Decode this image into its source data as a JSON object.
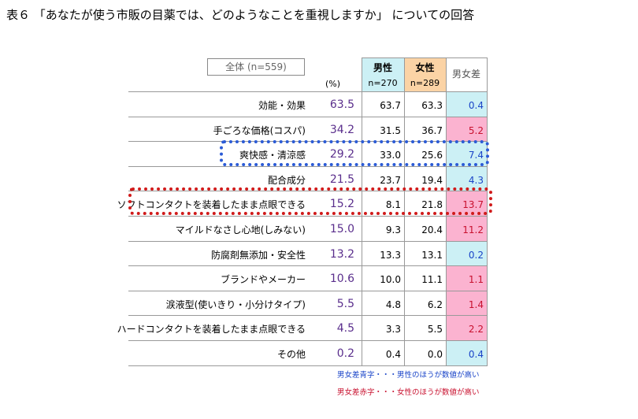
{
  "title": "表６ 「あなたが使う市販の目薬では、どのようなことを重視しますか」 についての回答",
  "total_badge": "全体 (n=559)",
  "pct_label": "(%)",
  "headers": {
    "male": "男性",
    "male_n": "n=270",
    "female": "女性",
    "female_n": "n=289",
    "diff": "男女差"
  },
  "notes": {
    "blue": "男女差青字・・・男性のほうが数値が高い",
    "red": "男女差赤字・・・女性のほうが数値が高い"
  },
  "colors": {
    "blue": "#1a44c8",
    "red": "#c8102e",
    "male_bg": "#ccf0f5",
    "female_bg": "#fbd3a5",
    "diff_red_bg": "#fbb3d0"
  },
  "chart_data": {
    "type": "table",
    "rows": [
      {
        "label": "効能・効果",
        "total": "63.5",
        "male": "63.7",
        "female": "63.3",
        "diff": "0.4",
        "higher": "male"
      },
      {
        "label": "手ごろな価格(コスパ)",
        "total": "34.2",
        "male": "31.5",
        "female": "36.7",
        "diff": "5.2",
        "higher": "female"
      },
      {
        "label": "爽快感・清涼感",
        "total": "29.2",
        "male": "33.0",
        "female": "25.6",
        "diff": "7.4",
        "higher": "male"
      },
      {
        "label": "配合成分",
        "total": "21.5",
        "male": "23.7",
        "female": "19.4",
        "diff": "4.3",
        "higher": "male"
      },
      {
        "label": "ソフトコンタクトを装着したまま点眼できる",
        "total": "15.2",
        "male": "8.1",
        "female": "21.8",
        "diff": "13.7",
        "higher": "female"
      },
      {
        "label": "マイルドなさし心地(しみない)",
        "total": "15.0",
        "male": "9.3",
        "female": "20.4",
        "diff": "11.2",
        "higher": "female"
      },
      {
        "label": "防腐剤無添加・安全性",
        "total": "13.2",
        "male": "13.3",
        "female": "13.1",
        "diff": "0.2",
        "higher": "male"
      },
      {
        "label": "ブランドやメーカー",
        "total": "10.6",
        "male": "10.0",
        "female": "11.1",
        "diff": "1.1",
        "higher": "female"
      },
      {
        "label": "涙液型(使いきり・小分けタイプ)",
        "total": "5.5",
        "male": "4.8",
        "female": "6.2",
        "diff": "1.4",
        "higher": "female"
      },
      {
        "label": "ハードコンタクトを装着したまま点眼できる",
        "total": "4.5",
        "male": "3.3",
        "female": "5.5",
        "diff": "2.2",
        "higher": "female"
      },
      {
        "label": "その他",
        "total": "0.2",
        "male": "0.4",
        "female": "0.0",
        "diff": "0.4",
        "higher": "male"
      }
    ]
  }
}
